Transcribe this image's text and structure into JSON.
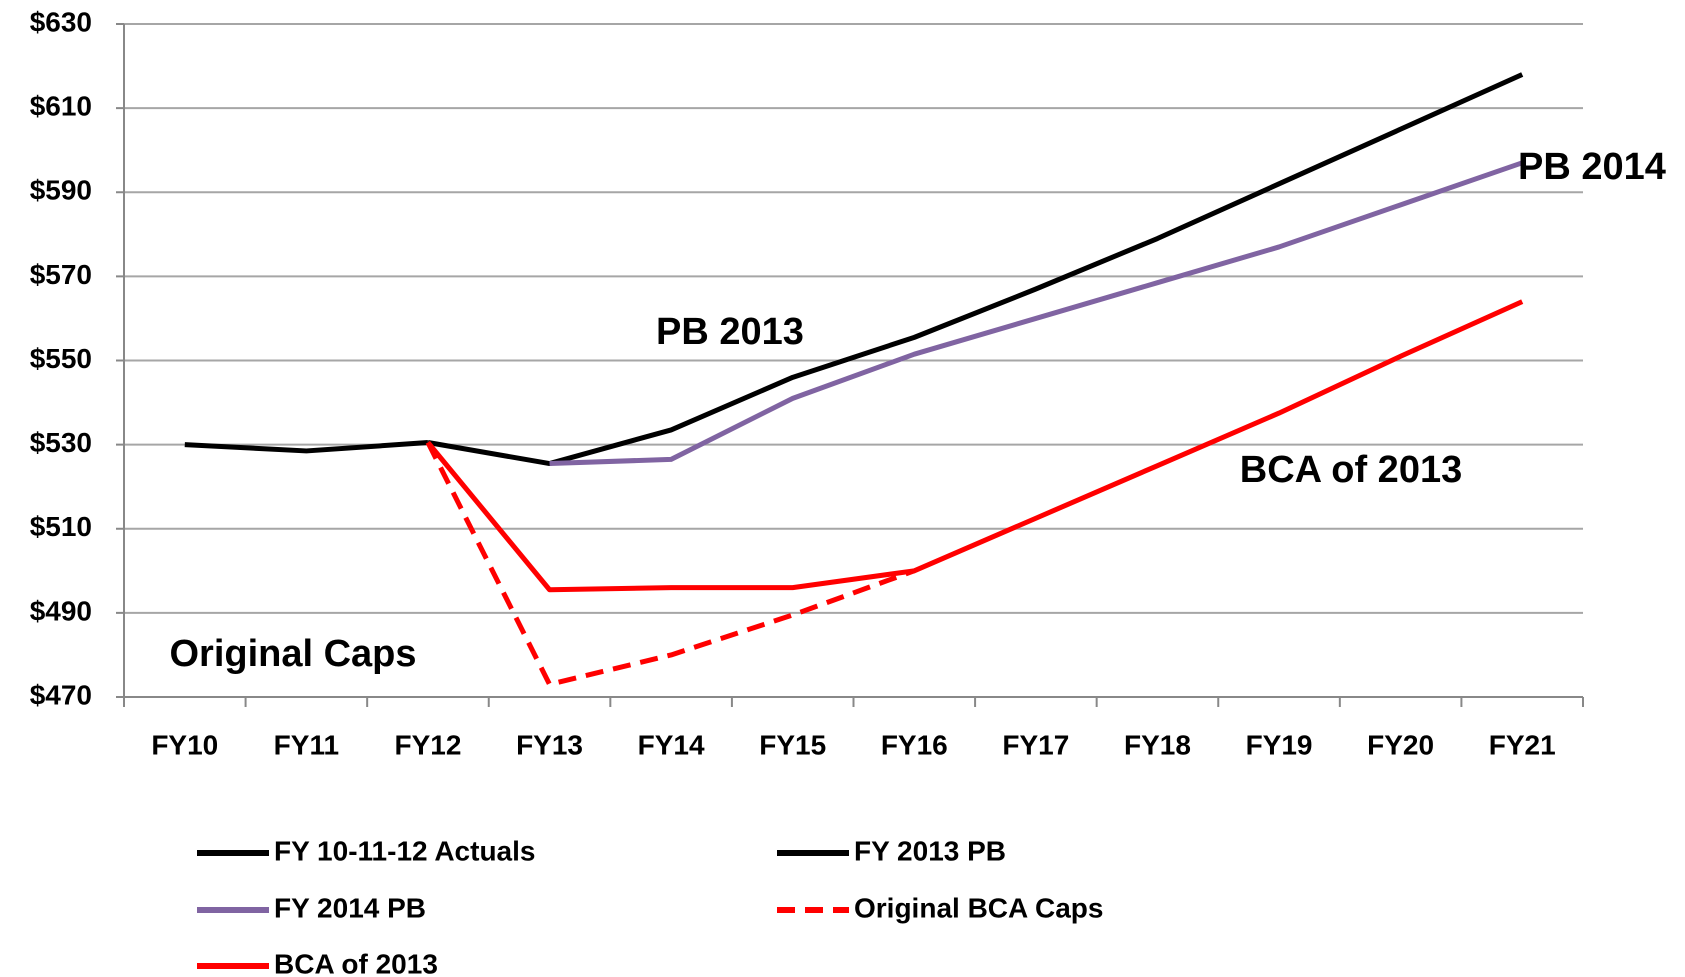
{
  "chart_data": {
    "type": "line",
    "categories": [
      "FY10",
      "FY11",
      "FY12",
      "FY13",
      "FY14",
      "FY15",
      "FY16",
      "FY17",
      "FY18",
      "FY19",
      "FY20",
      "FY21"
    ],
    "series": [
      {
        "name": "FY 10-11-12 Actuals",
        "color": "#000000",
        "style": "solid",
        "values": [
          530,
          528.5,
          530.5,
          null,
          null,
          null,
          null,
          null,
          null,
          null,
          null,
          null
        ]
      },
      {
        "name": "FY 2013 PB",
        "color": "#000000",
        "style": "solid",
        "values": [
          null,
          null,
          530.5,
          525.5,
          533.5,
          546,
          555.5,
          567,
          579,
          592,
          605,
          618
        ]
      },
      {
        "name": "FY 2014 PB",
        "color": "#8064a2",
        "style": "solid",
        "values": [
          null,
          null,
          null,
          525.5,
          526.5,
          541,
          551.5,
          560,
          568.5,
          577,
          587,
          597
        ]
      },
      {
        "name": "Original BCA Caps",
        "color": "#ff0000",
        "style": "dashed",
        "values": [
          null,
          null,
          530.5,
          473,
          480,
          489.5,
          500,
          null,
          null,
          null,
          null,
          null
        ]
      },
      {
        "name": "BCA of 2013",
        "color": "#ff0000",
        "style": "solid",
        "values": [
          null,
          null,
          530.5,
          495.5,
          496,
          496,
          500,
          512.5,
          525,
          537.5,
          551,
          564
        ]
      }
    ],
    "annotations": [
      {
        "text": "PB 2013",
        "color": "#404040"
      },
      {
        "text": "PB 2014",
        "color": "#7030a0"
      },
      {
        "text": "BCA of 2013",
        "color": "#ff0000"
      },
      {
        "text": "Original Caps",
        "color": "#ff0000"
      }
    ],
    "ylim": [
      470,
      630
    ],
    "yticks": [
      {
        "value": 470,
        "label": "$470"
      },
      {
        "value": 490,
        "label": "$490"
      },
      {
        "value": 510,
        "label": "$510"
      },
      {
        "value": 530,
        "label": "$530"
      },
      {
        "value": 550,
        "label": "$550"
      },
      {
        "value": 570,
        "label": "$570"
      },
      {
        "value": 590,
        "label": "$590"
      },
      {
        "value": 610,
        "label": "$610"
      },
      {
        "value": 630,
        "label": "$630"
      }
    ],
    "grid": true,
    "legend": "bottom"
  }
}
